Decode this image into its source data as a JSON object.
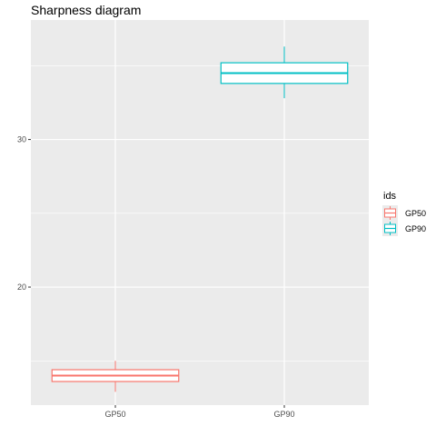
{
  "chart_data": {
    "type": "boxplot",
    "title": "Sharpness diagram",
    "xlabel": "",
    "ylabel": "",
    "categories": [
      "GP50",
      "GP90"
    ],
    "ylim": [
      12.0,
      38.1
    ],
    "yticks": [
      20,
      30
    ],
    "grid": true,
    "legend": {
      "title": "ids",
      "placement": "right",
      "entries": [
        "GP50",
        "GP90"
      ]
    },
    "colors": {
      "GP50": "#F8766D",
      "GP90": "#00BFC4",
      "panel": "#EBEBEB",
      "grid": "#FFFFFF"
    },
    "series": [
      {
        "name": "GP50",
        "min": 12.9,
        "q1": 13.6,
        "median": 14.0,
        "q3": 14.4,
        "max": 15.0
      },
      {
        "name": "GP90",
        "min": 32.8,
        "q1": 33.8,
        "median": 34.5,
        "q3": 35.2,
        "max": 36.3
      }
    ]
  }
}
